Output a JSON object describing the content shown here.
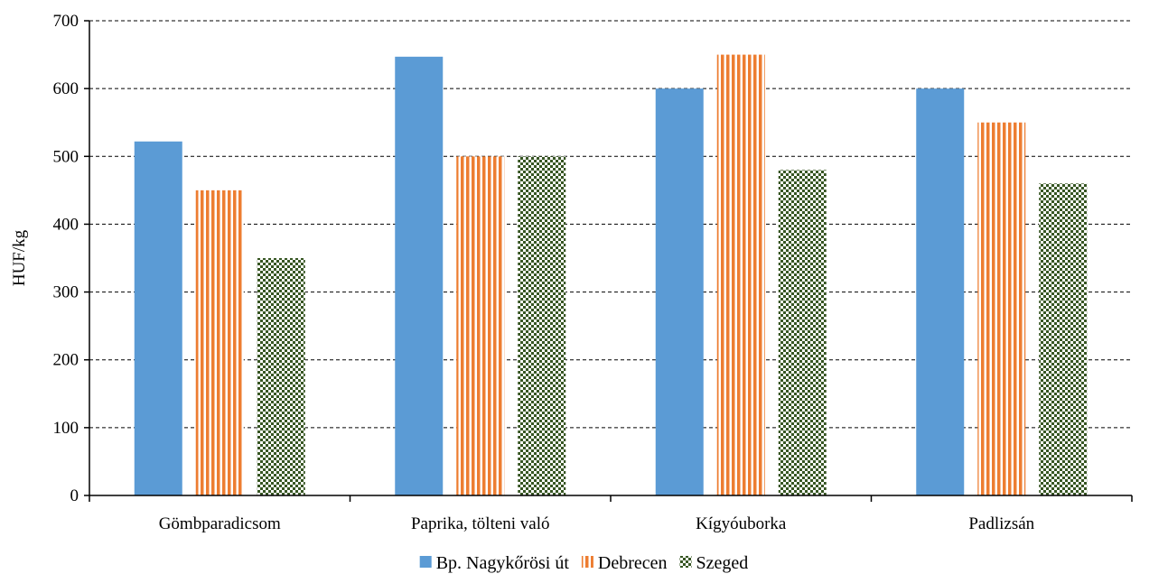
{
  "chart_data": {
    "type": "bar",
    "title": "",
    "xlabel": "",
    "ylabel": "HUF/kg",
    "ylim": [
      0,
      700
    ],
    "yticks": [
      0,
      100,
      200,
      300,
      400,
      500,
      600,
      700
    ],
    "grid": true,
    "legend_position": "bottom",
    "categories": [
      "Gömbparadicsom",
      "Paprika, tölteni való",
      "Kígyóuborka",
      "Padlizsán"
    ],
    "series": [
      {
        "name": "Bp. Nagykőrösi út",
        "values": [
          522,
          647,
          600,
          600
        ],
        "color": "#5b9bd5",
        "pattern": "solid"
      },
      {
        "name": "Debrecen",
        "values": [
          450,
          500,
          650,
          550
        ],
        "color": "#ed7d31",
        "pattern": "vertical-stripes"
      },
      {
        "name": "Szeged",
        "values": [
          350,
          500,
          480,
          460
        ],
        "color": "#375623",
        "pattern": "checker"
      }
    ]
  }
}
